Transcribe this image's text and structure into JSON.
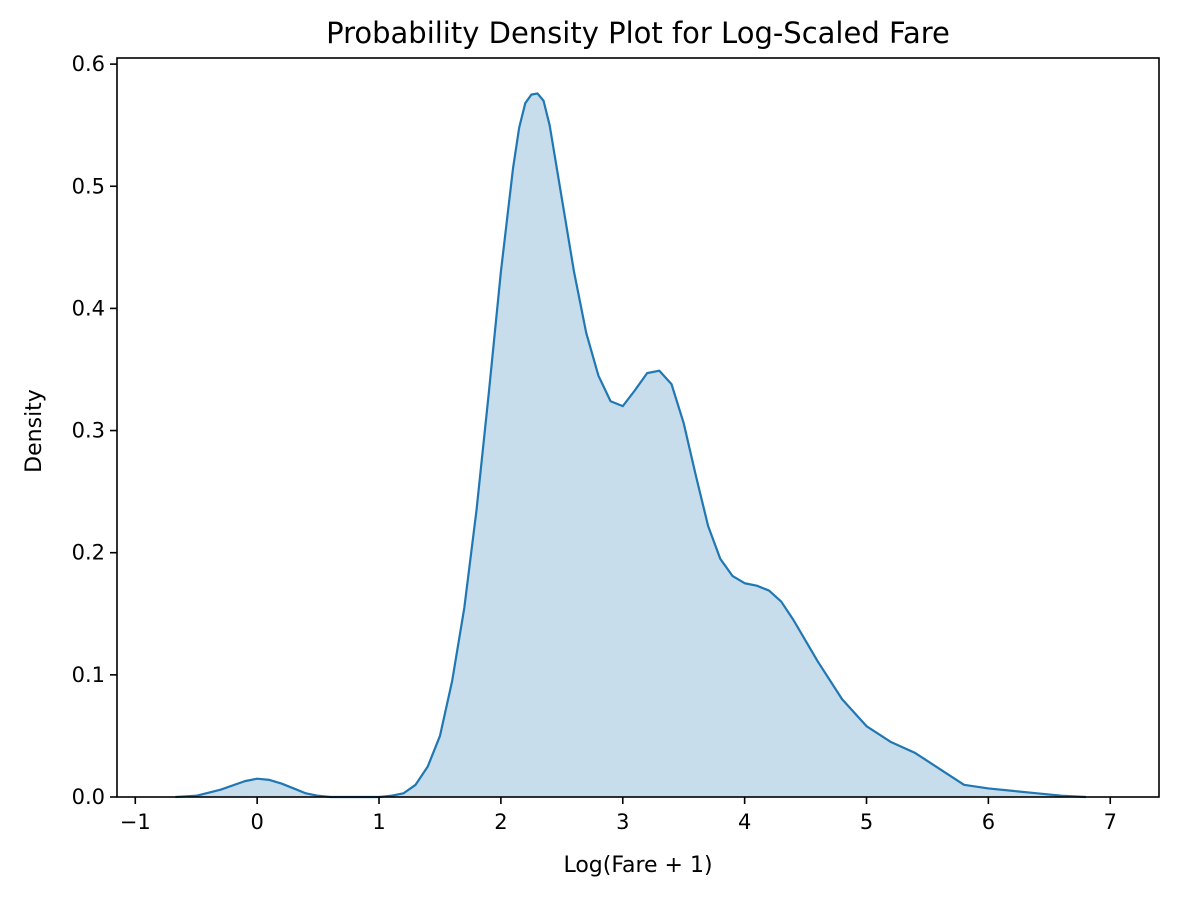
{
  "chart_data": {
    "type": "area",
    "title": "Probability Density Plot for Log-Scaled Fare",
    "xlabel": "Log(Fare + 1)",
    "ylabel": "Density",
    "xlim": [
      -1.15,
      7.4
    ],
    "ylim": [
      0,
      0.605
    ],
    "xticks": [
      -1,
      0,
      1,
      2,
      3,
      4,
      5,
      6,
      7
    ],
    "xtick_labels": [
      "−1",
      "0",
      "1",
      "2",
      "3",
      "4",
      "5",
      "6",
      "7"
    ],
    "yticks": [
      0.0,
      0.1,
      0.2,
      0.3,
      0.4,
      0.5,
      0.6
    ],
    "ytick_labels": [
      "0.0",
      "0.1",
      "0.2",
      "0.3",
      "0.4",
      "0.5",
      "0.6"
    ],
    "grid": false,
    "line_color": "#1f77b4",
    "fill_color": "#1f77b4",
    "fill_opacity": 0.25,
    "series": [
      {
        "x": [
          -0.67,
          -0.5,
          -0.3,
          -0.1,
          0.0,
          0.1,
          0.2,
          0.3,
          0.4,
          0.5,
          0.6,
          0.8,
          1.0,
          1.1,
          1.2,
          1.3,
          1.4,
          1.5,
          1.6,
          1.7,
          1.8,
          1.9,
          2.0,
          2.1,
          2.15,
          2.2,
          2.25,
          2.3,
          2.35,
          2.4,
          2.5,
          2.6,
          2.7,
          2.8,
          2.9,
          3.0,
          3.1,
          3.2,
          3.3,
          3.4,
          3.5,
          3.6,
          3.7,
          3.8,
          3.9,
          4.0,
          4.1,
          4.2,
          4.3,
          4.4,
          4.5,
          4.6,
          4.8,
          5.0,
          5.2,
          5.4,
          5.6,
          5.8,
          6.0,
          6.2,
          6.4,
          6.6,
          6.8
        ],
        "y": [
          0.0,
          0.001,
          0.006,
          0.013,
          0.015,
          0.014,
          0.011,
          0.007,
          0.003,
          0.001,
          0.0,
          0.0,
          0.0,
          0.001,
          0.003,
          0.01,
          0.025,
          0.05,
          0.095,
          0.155,
          0.235,
          0.33,
          0.43,
          0.515,
          0.548,
          0.568,
          0.575,
          0.576,
          0.57,
          0.55,
          0.49,
          0.43,
          0.38,
          0.345,
          0.324,
          0.32,
          0.333,
          0.347,
          0.349,
          0.338,
          0.306,
          0.263,
          0.222,
          0.195,
          0.181,
          0.175,
          0.173,
          0.169,
          0.16,
          0.145,
          0.128,
          0.111,
          0.08,
          0.058,
          0.045,
          0.036,
          0.023,
          0.01,
          0.007,
          0.005,
          0.003,
          0.001,
          0.0
        ]
      }
    ]
  }
}
